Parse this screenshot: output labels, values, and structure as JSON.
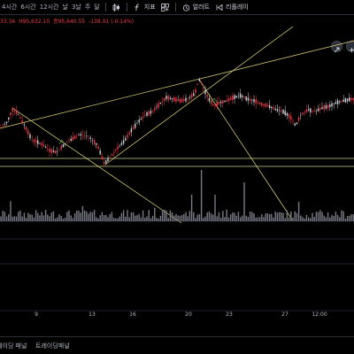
{
  "toolbar": {
    "timeframes": [
      "4시간",
      "6시간",
      "12시간",
      "날",
      "3날",
      "주",
      "달"
    ],
    "indicator_label": "지표",
    "alert_label": "얼러트",
    "replay_label": "리플레이"
  },
  "ohlc": {
    "open_partial": "33.34",
    "high": "H95,632.10",
    "low": "종95,640.55",
    "change": "-138.01 (-0.14%)"
  },
  "xaxis": {
    "labels": [
      "9",
      "13",
      "16",
      "20",
      "23",
      "27",
      "12:00"
    ]
  },
  "bottom_panel": {
    "tabs": [
      "레이딩 패널",
      "트레이딩패널"
    ]
  },
  "colors": {
    "background": "#000000",
    "candle_up": "#d1d4dc",
    "candle_down": "#f23645",
    "trend_line": "#e6dc7a",
    "horizontal_line": "#c4cf8a",
    "volume": "#787b86"
  }
}
